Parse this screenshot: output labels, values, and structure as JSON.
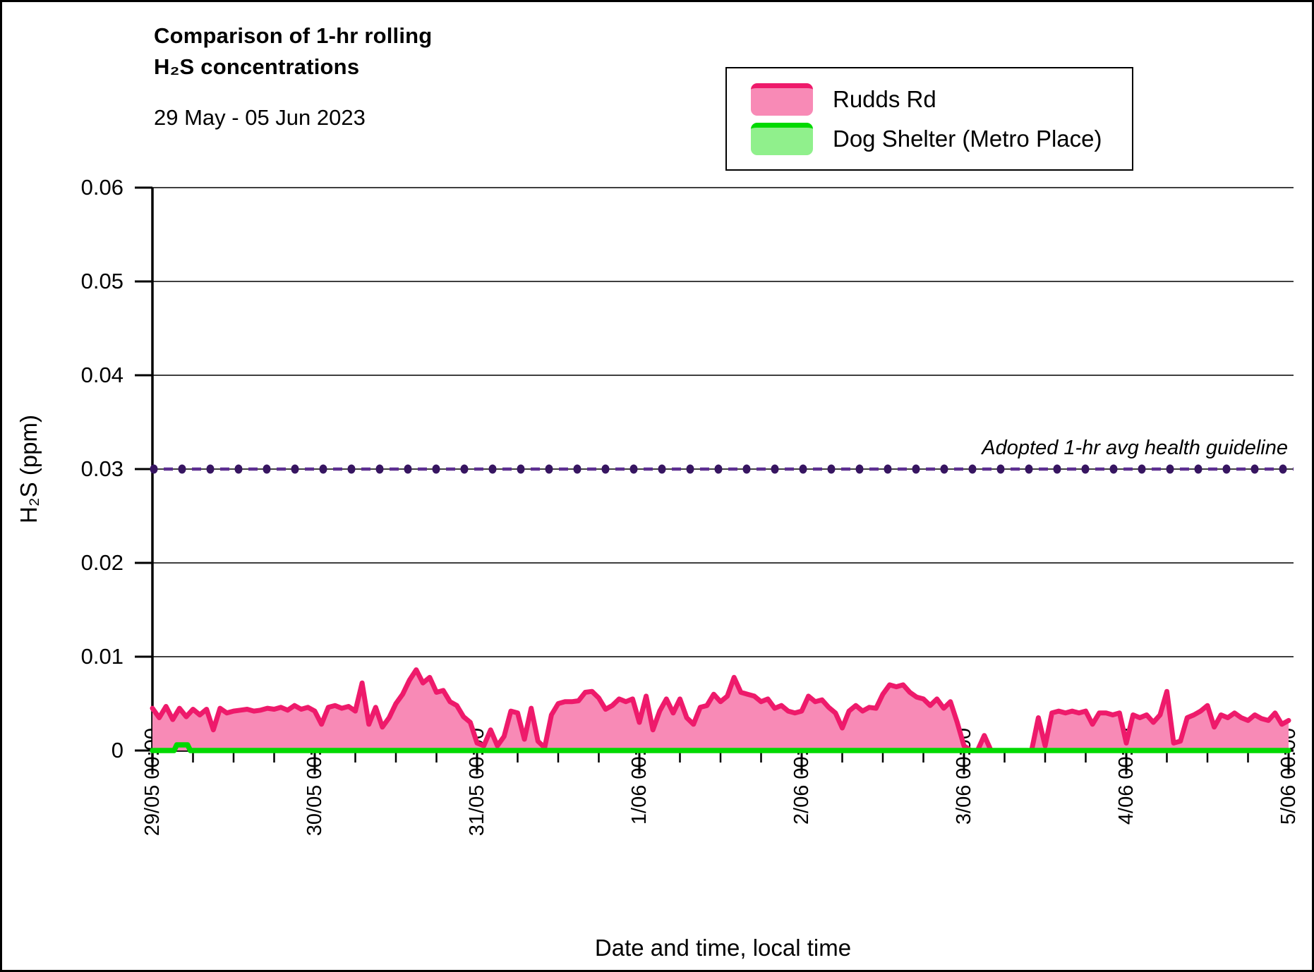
{
  "title": {
    "line1": "Comparison of 1-hr rolling",
    "line2": "H₂S concentrations",
    "subtitle": "29 May - 05 Jun 2023"
  },
  "legend": {
    "items": [
      {
        "label": "Rudds Rd",
        "fill": "#f88ab6",
        "line": "#ee1a6b"
      },
      {
        "label": "Dog Shelter (Metro Place)",
        "fill": "#90f08c",
        "line": "#00d900"
      }
    ]
  },
  "axes": {
    "y_title": "H₂S (ppm)",
    "x_title": "Date and time, local time"
  },
  "annotation": {
    "guideline_label": "Adopted 1-hr avg health guideline"
  },
  "chart_data": {
    "type": "area",
    "title": "Comparison of 1-hr rolling H₂S concentrations, 29 May - 05 Jun 2023",
    "x_axis": {
      "label": "Date and time, local time",
      "tick_labels": [
        "29/05 00:00",
        "30/05 00:00",
        "31/05 00:00",
        "1/06 00:00",
        "2/06 00:00",
        "3/06 00:00",
        "4/06 00:00",
        "5/06 00:00"
      ],
      "start": "29/05 00:00",
      "end": "5/06 00:00",
      "sample_interval_hours": 1,
      "minor_tick_hours": 6,
      "total_hours": 168
    },
    "y_axis": {
      "label": "H₂S (ppm)",
      "range": [
        0,
        0.06
      ],
      "tick_step": 0.01,
      "tick_labels": [
        "0",
        "0.01",
        "0.02",
        "0.03",
        "0.04",
        "0.05",
        "0.06"
      ],
      "gridlines": true,
      "gridline_color": "#3f3f3f"
    },
    "guideline": {
      "label": "Adopted 1-hr avg health guideline",
      "value_ppm": 0.03,
      "style": "dashed line with round markers",
      "dot_color": "#371561",
      "dash_color": "#5b2d90"
    },
    "series": [
      {
        "name": "Rudds Rd",
        "type": "area",
        "unit": "ppm",
        "line_color": "#ee1a6b",
        "fill_color": "#f88ab6",
        "sampling": "hourly from 29/05 00:00 to 5/06 00:00",
        "values_ppm": [
          0.0045,
          0.0035,
          0.0047,
          0.0033,
          0.0045,
          0.0036,
          0.0044,
          0.0038,
          0.0044,
          0.0022,
          0.0045,
          0.004,
          0.0042,
          0.0043,
          0.0044,
          0.0042,
          0.0043,
          0.0045,
          0.0044,
          0.0046,
          0.0043,
          0.0048,
          0.0044,
          0.0046,
          0.0042,
          0.0028,
          0.0046,
          0.0048,
          0.0045,
          0.0047,
          0.0042,
          0.0072,
          0.0028,
          0.0046,
          0.0025,
          0.0035,
          0.005,
          0.006,
          0.0075,
          0.0086,
          0.0072,
          0.0078,
          0.0062,
          0.0064,
          0.0052,
          0.0048,
          0.0036,
          0.003,
          0.0008,
          0.0005,
          0.0022,
          0.0005,
          0.0015,
          0.0042,
          0.004,
          0.0012,
          0.0045,
          0.001,
          0.0003,
          0.0038,
          0.005,
          0.0052,
          0.0052,
          0.0053,
          0.0062,
          0.0063,
          0.0056,
          0.0044,
          0.0048,
          0.0055,
          0.0052,
          0.0055,
          0.003,
          0.0058,
          0.0022,
          0.0042,
          0.0055,
          0.004,
          0.0055,
          0.0035,
          0.0028,
          0.0046,
          0.0048,
          0.006,
          0.0052,
          0.0058,
          0.0078,
          0.0062,
          0.006,
          0.0058,
          0.0052,
          0.0055,
          0.0045,
          0.0048,
          0.0042,
          0.004,
          0.0042,
          0.0058,
          0.0052,
          0.0054,
          0.0046,
          0.004,
          0.0024,
          0.0042,
          0.0048,
          0.0042,
          0.0046,
          0.0045,
          0.006,
          0.007,
          0.0068,
          0.007,
          0.0062,
          0.0057,
          0.0055,
          0.0048,
          0.0055,
          0.0045,
          0.0052,
          0.003,
          0.0005,
          0.0,
          0.0,
          0.0016,
          0.0,
          0.0,
          0.0,
          0.0,
          0.0,
          0.0,
          0.0,
          0.0035,
          0.0005,
          0.004,
          0.0042,
          0.004,
          0.0042,
          0.004,
          0.0042,
          0.0028,
          0.004,
          0.004,
          0.0038,
          0.004,
          0.0008,
          0.0038,
          0.0035,
          0.0038,
          0.003,
          0.0038,
          0.0063,
          0.0008,
          0.001,
          0.0035,
          0.0038,
          0.0042,
          0.0048,
          0.0025,
          0.0038,
          0.0035,
          0.004,
          0.0035,
          0.0032,
          0.0038,
          0.0034,
          0.0032,
          0.004,
          0.0028,
          0.0032
        ]
      },
      {
        "name": "Dog Shelter (Metro Place)",
        "type": "line",
        "unit": "ppm",
        "line_color": "#00d900",
        "fill_color": "#90f08c",
        "description": "Flat at ~0 ppm for the whole period except a brief small rise early on 29/05",
        "points_hour_ppm": [
          [
            0,
            0
          ],
          [
            3.2,
            0
          ],
          [
            3.6,
            0.0006
          ],
          [
            5.2,
            0.0006
          ],
          [
            5.6,
            0
          ],
          [
            168,
            0
          ]
        ]
      }
    ]
  }
}
